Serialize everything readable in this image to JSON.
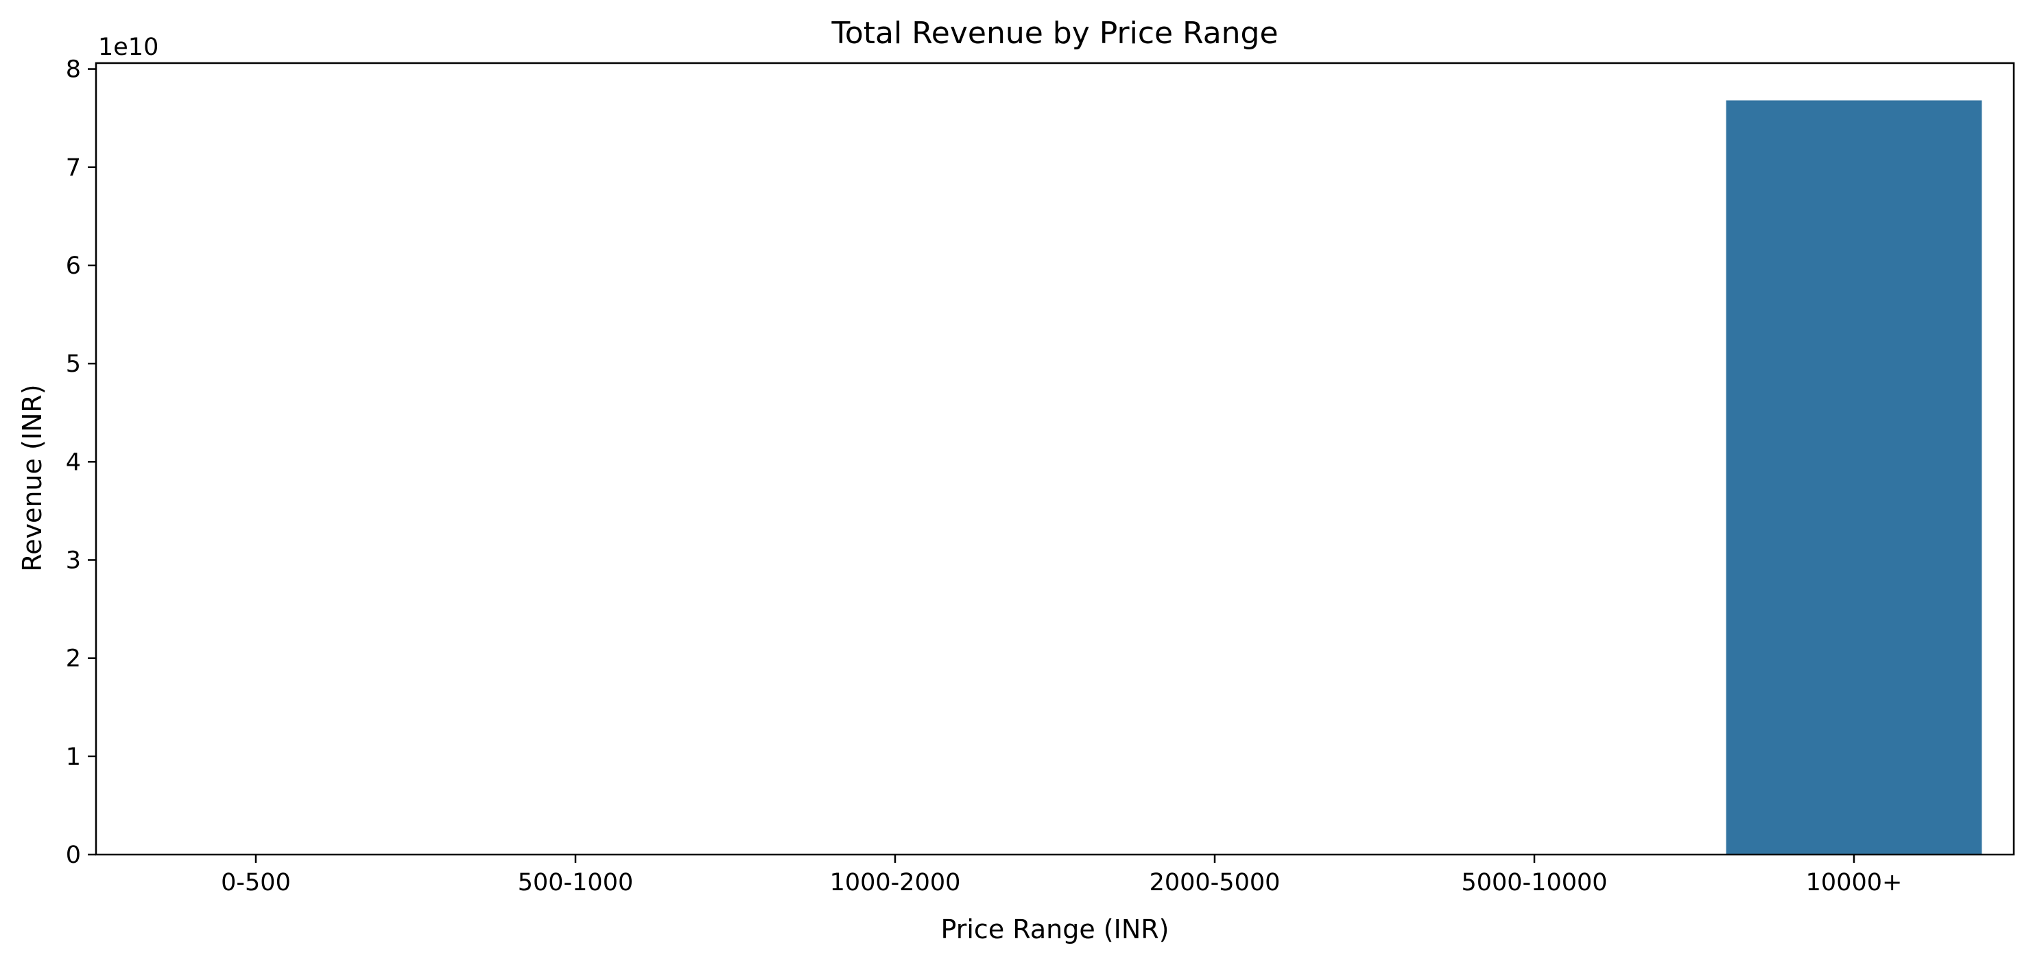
{
  "chart_data": {
    "type": "bar",
    "title": "Total Revenue by Price Range",
    "xlabel": "Price Range (INR)",
    "ylabel": "Revenue (INR)",
    "y_offset_label": "1e10",
    "y_scale": 10000000000,
    "categories": [
      "0-500",
      "500-1000",
      "1000-2000",
      "2000-5000",
      "5000-10000",
      "10000+"
    ],
    "values": [
      0,
      0,
      0,
      0,
      0,
      76800000000
    ],
    "ylim": [
      0,
      80600000000
    ],
    "yticks": [
      0,
      10000000000,
      20000000000,
      30000000000,
      40000000000,
      50000000000,
      60000000000,
      70000000000,
      80000000000
    ],
    "ytick_labels": [
      "0",
      "1",
      "2",
      "3",
      "4",
      "5",
      "6",
      "7",
      "8"
    ],
    "bar_color": "#3274a1",
    "grid": false,
    "legend": "none"
  }
}
